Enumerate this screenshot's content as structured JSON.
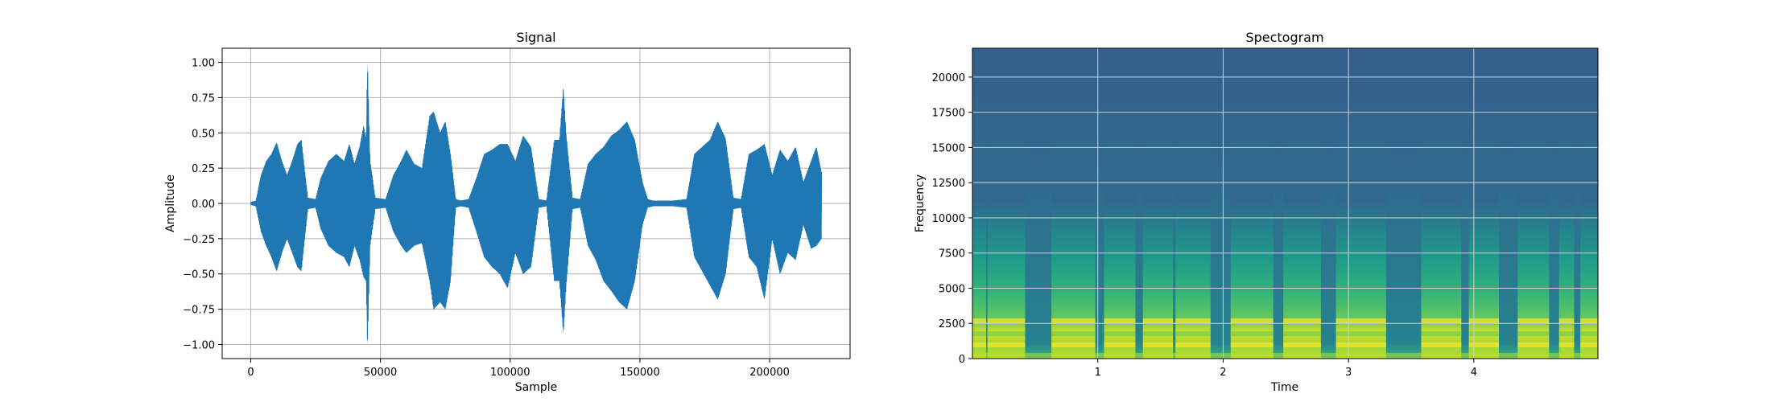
{
  "chart_data": [
    {
      "type": "line",
      "title": "Signal",
      "xlabel": "Sample",
      "ylabel": "Amplitude",
      "xlim": [
        -11000,
        231000
      ],
      "ylim": [
        -1.1,
        1.1
      ],
      "xticks": [
        0,
        50000,
        100000,
        150000,
        200000
      ],
      "xtick_labels": [
        "0",
        "50000",
        "100000",
        "150000",
        "200000"
      ],
      "yticks": [
        -1.0,
        -0.75,
        -0.5,
        -0.25,
        0.0,
        0.25,
        0.5,
        0.75,
        1.0
      ],
      "ytick_labels": [
        "−1.00",
        "−0.75",
        "−0.50",
        "−0.25",
        "0.00",
        "0.25",
        "0.50",
        "0.75",
        "1.00"
      ],
      "grid": true,
      "series": [
        {
          "color": "#1f77b4",
          "envelope": {
            "x": [
              0,
              2000,
              4000,
              6000,
              8000,
              10000,
              12000,
              14000,
              16000,
              18000,
              19500,
              22000,
              25000,
              27000,
              30000,
              33000,
              36000,
              38000,
              40000,
              42000,
              43500,
              44500,
              45000,
              46000,
              48000,
              52000,
              55000,
              58000,
              60000,
              63000,
              66000,
              69000,
              70500,
              73000,
              75000,
              77000,
              79000,
              81000,
              84000,
              87000,
              90000,
              93000,
              96000,
              99000,
              102000,
              105000,
              108000,
              111000,
              114000,
              117000,
              119000,
              120500,
              121500,
              124000,
              127000,
              130000,
              133000,
              136000,
              139000,
              142000,
              145000,
              148000,
              151000,
              153000,
              155000,
              158000,
              163000,
              168000,
              171000,
              174000,
              177000,
              180000,
              183000,
              186000,
              189000,
              192000,
              195000,
              198000,
              201000,
              204000,
              207000,
              210000,
              213000,
              216000,
              218000,
              220000
            ],
            "upper": [
              0.01,
              0.02,
              0.2,
              0.3,
              0.35,
              0.43,
              0.3,
              0.2,
              0.3,
              0.42,
              0.45,
              0.04,
              0.03,
              0.18,
              0.3,
              0.35,
              0.3,
              0.42,
              0.28,
              0.4,
              0.55,
              0.45,
              1.0,
              0.3,
              0.04,
              0.03,
              0.2,
              0.3,
              0.38,
              0.28,
              0.25,
              0.62,
              0.65,
              0.5,
              0.58,
              0.35,
              0.03,
              0.02,
              0.03,
              0.18,
              0.35,
              0.38,
              0.42,
              0.42,
              0.3,
              0.48,
              0.4,
              0.03,
              0.02,
              0.45,
              0.45,
              0.82,
              0.5,
              0.04,
              0.03,
              0.28,
              0.35,
              0.4,
              0.48,
              0.52,
              0.58,
              0.45,
              0.15,
              0.03,
              0.02,
              0.02,
              0.02,
              0.03,
              0.35,
              0.4,
              0.45,
              0.58,
              0.46,
              0.04,
              0.03,
              0.35,
              0.38,
              0.42,
              0.2,
              0.38,
              0.3,
              0.4,
              0.15,
              0.3,
              0.4,
              0.22
            ],
            "lower": [
              -0.01,
              -0.02,
              -0.2,
              -0.3,
              -0.38,
              -0.48,
              -0.35,
              -0.25,
              -0.35,
              -0.45,
              -0.48,
              -0.04,
              -0.03,
              -0.18,
              -0.3,
              -0.35,
              -0.38,
              -0.45,
              -0.3,
              -0.4,
              -0.52,
              -0.55,
              -1.0,
              -0.3,
              -0.04,
              -0.03,
              -0.2,
              -0.3,
              -0.35,
              -0.3,
              -0.28,
              -0.55,
              -0.75,
              -0.7,
              -0.75,
              -0.55,
              -0.03,
              -0.02,
              -0.03,
              -0.2,
              -0.38,
              -0.45,
              -0.5,
              -0.6,
              -0.35,
              -0.5,
              -0.45,
              -0.03,
              -0.02,
              -0.55,
              -0.55,
              -0.92,
              -0.6,
              -0.04,
              -0.03,
              -0.3,
              -0.4,
              -0.55,
              -0.62,
              -0.7,
              -0.75,
              -0.55,
              -0.15,
              -0.03,
              -0.02,
              -0.02,
              -0.02,
              -0.03,
              -0.38,
              -0.48,
              -0.58,
              -0.68,
              -0.5,
              -0.04,
              -0.03,
              -0.38,
              -0.45,
              -0.68,
              -0.25,
              -0.5,
              -0.35,
              -0.4,
              -0.15,
              -0.32,
              -0.3,
              -0.25
            ]
          }
        }
      ]
    },
    {
      "type": "heatmap",
      "title": "Spectogram",
      "xlabel": "Time",
      "ylabel": "Frequency",
      "xlim": [
        0.0,
        4.99
      ],
      "ylim": [
        0,
        22050
      ],
      "xticks": [
        1,
        2,
        3,
        4
      ],
      "xtick_labels": [
        "1",
        "2",
        "3",
        "4"
      ],
      "yticks": [
        0,
        2500,
        5000,
        7500,
        10000,
        12500,
        15000,
        17500,
        20000
      ],
      "ytick_labels": [
        "0",
        "2500",
        "5000",
        "7500",
        "10000",
        "12500",
        "15000",
        "17500",
        "20000"
      ],
      "grid": true,
      "colormap": "viridis",
      "colors": [
        "#3e4a89",
        "#31688e",
        "#26828e",
        "#1f9e89",
        "#35b779",
        "#6ece58",
        "#b5de2b",
        "#fde725"
      ],
      "voiced_segments_time": [
        [
          0.0,
          0.11
        ],
        [
          0.12,
          0.42
        ],
        [
          0.63,
          0.98
        ],
        [
          1.05,
          1.3
        ],
        [
          1.36,
          1.6
        ],
        [
          1.62,
          1.9
        ],
        [
          2.06,
          2.4
        ],
        [
          2.48,
          2.78
        ],
        [
          2.9,
          3.3
        ],
        [
          3.58,
          3.9
        ],
        [
          3.96,
          4.2
        ],
        [
          4.35,
          4.6
        ],
        [
          4.68,
          4.8
        ],
        [
          4.85,
          4.99
        ]
      ]
    }
  ]
}
